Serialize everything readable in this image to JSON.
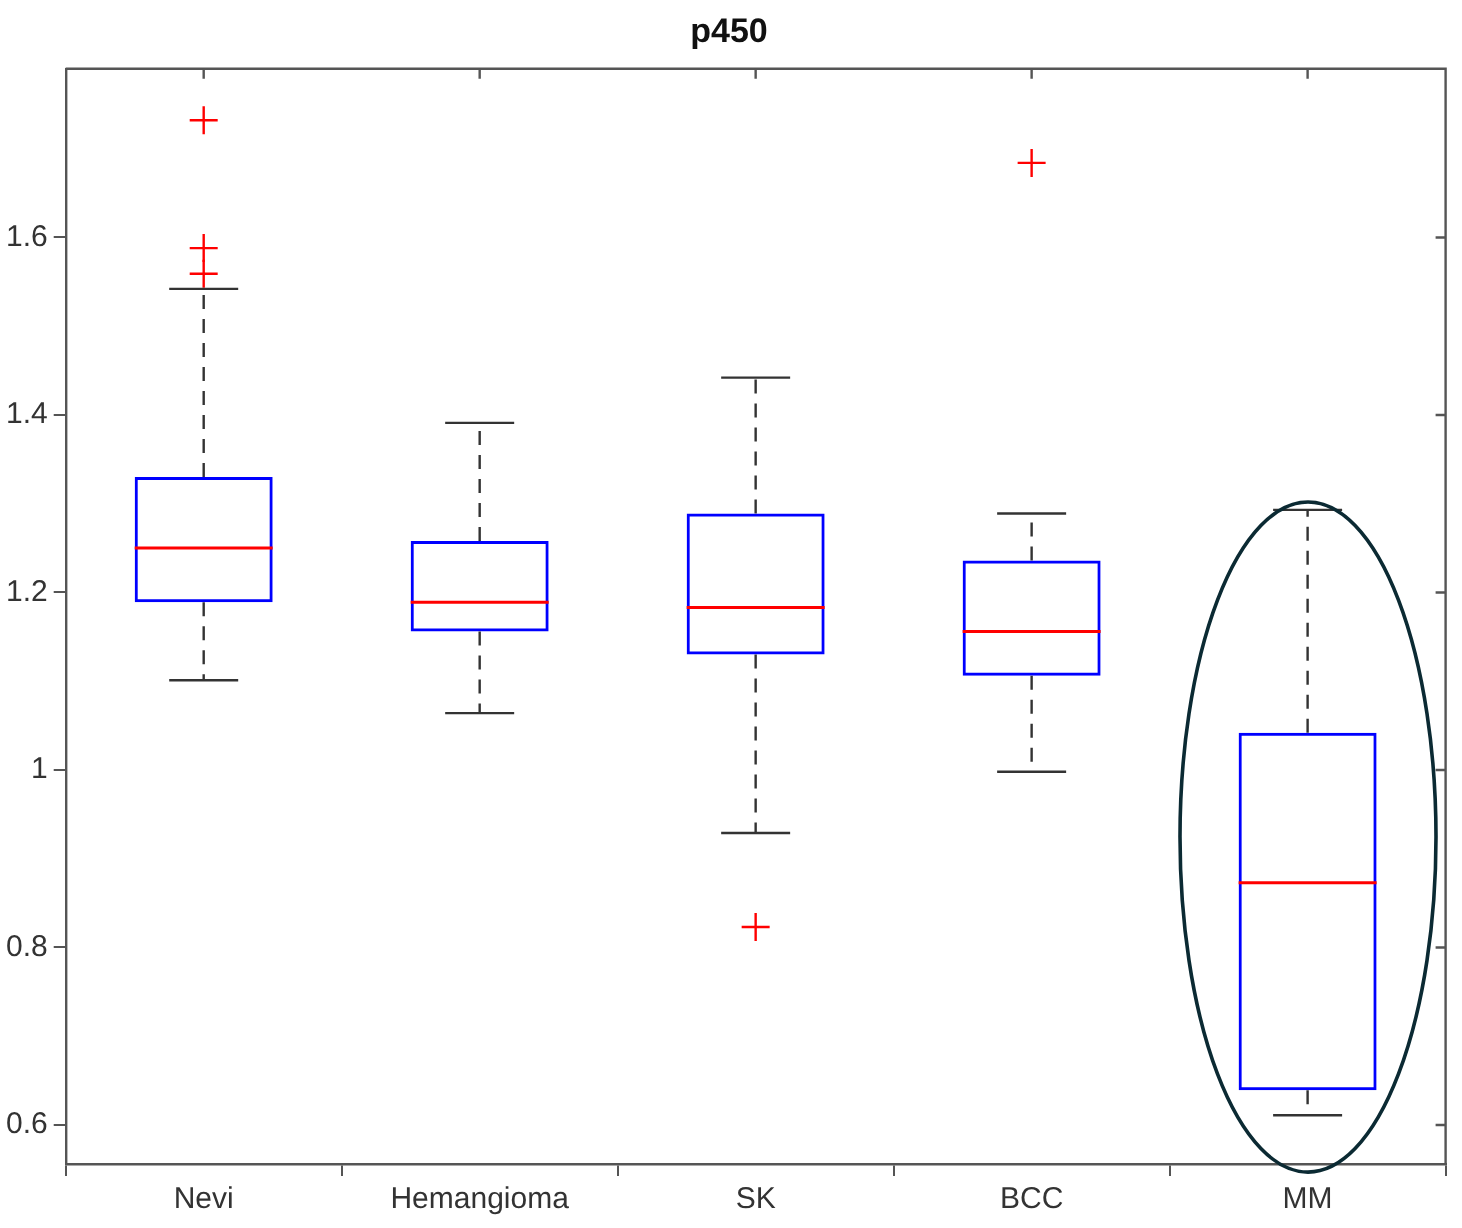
{
  "chart_data": {
    "type": "box",
    "title": "p450",
    "categories": [
      "Nevi",
      "Hemangioma",
      "SK",
      "BCC",
      "MM"
    ],
    "boxes": [
      {
        "low": 1.101,
        "q1": 1.189,
        "median": 1.25,
        "q3": 1.33,
        "high": 1.542,
        "outliers": [
          1.732,
          1.588,
          1.559
        ]
      },
      {
        "low": 1.064,
        "q1": 1.156,
        "median": 1.189,
        "q3": 1.258,
        "high": 1.391
      },
      {
        "low": 0.929,
        "q1": 1.13,
        "median": 1.183,
        "q3": 1.289,
        "high": 1.442,
        "outliers": [
          0.823
        ]
      },
      {
        "low": 0.998,
        "q1": 1.106,
        "median": 1.156,
        "q3": 1.236,
        "high": 1.289,
        "outliers": [
          1.684
        ]
      },
      {
        "low": 0.611,
        "q1": 0.639,
        "median": 0.873,
        "q3": 1.042,
        "high": 1.293
      }
    ],
    "color": "#0000ff",
    "ylim": [
      0.556,
      1.79
    ],
    "yticks": [
      0.6,
      0.8,
      1,
      1.2,
      1.4,
      1.6
    ],
    "marker": "cross"
  }
}
